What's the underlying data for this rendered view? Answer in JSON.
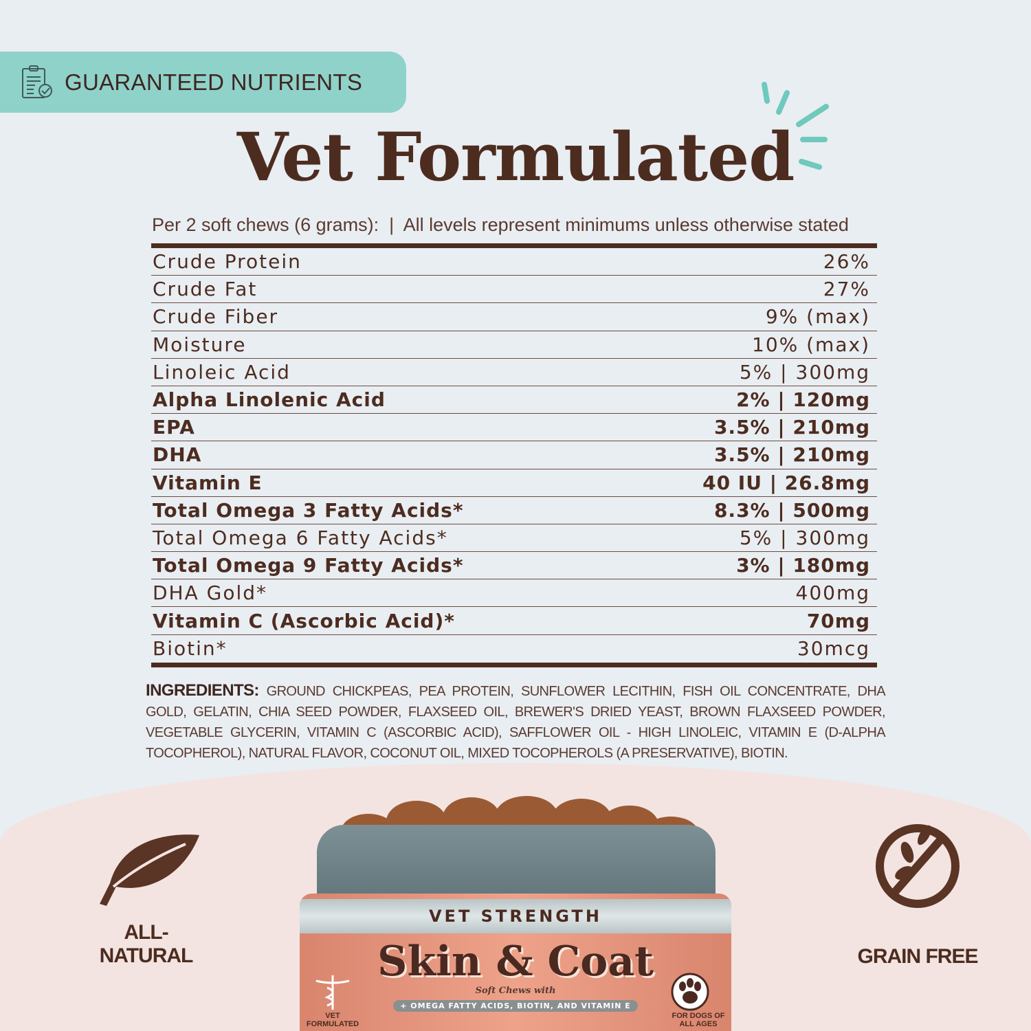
{
  "badge": {
    "icon": "clipboard-check-icon",
    "label": "GUARANTEED NUTRIENTS"
  },
  "title": "Vet Formulated",
  "serving_note": "Per 2 soft chews (6 grams):  |  All levels represent minimums unless otherwise stated",
  "nutrients": [
    {
      "name": "Crude Protein",
      "value": "26%",
      "bold": false
    },
    {
      "name": "Crude Fat",
      "value": "27%",
      "bold": false
    },
    {
      "name": "Crude Fiber",
      "value": "9% (max)",
      "bold": false
    },
    {
      "name": "Moisture",
      "value": "10% (max)",
      "bold": false
    },
    {
      "name": "Linoleic Acid",
      "value": "5% | 300mg",
      "bold": false
    },
    {
      "name": "Alpha Linolenic Acid",
      "value": "2% | 120mg",
      "bold": true
    },
    {
      "name": "EPA",
      "value": "3.5% | 210mg",
      "bold": true
    },
    {
      "name": "DHA",
      "value": "3.5% | 210mg",
      "bold": true
    },
    {
      "name": "Vitamin E",
      "value": "40 IU | 26.8mg",
      "bold": true
    },
    {
      "name": "Total Omega 3 Fatty Acids*",
      "value": "8.3% | 500mg",
      "bold": true
    },
    {
      "name": "Total Omega 6 Fatty Acids*",
      "value": "5% | 300mg",
      "bold": false
    },
    {
      "name": "Total Omega 9 Fatty Acids*",
      "value": "3% | 180mg",
      "bold": true
    },
    {
      "name": "DHA Gold*",
      "value": "400mg",
      "bold": false
    },
    {
      "name": "Vitamin C (Ascorbic Acid)*",
      "value": "70mg",
      "bold": true
    },
    {
      "name": "Biotin*",
      "value": "30mcg",
      "bold": false
    }
  ],
  "ingredients": {
    "label": "INGREDIENTS:",
    "text": "GROUND CHICKPEAS, PEA PROTEIN, SUNFLOWER LECITHIN, FISH OIL CONCENTRATE, DHA GOLD, GELATIN, CHIA SEED POWDER, FLAXSEED OIL, BREWER'S DRIED YEAST, BROWN FLAXSEED POWDER, VEGETABLE GLYCERIN, VITAMIN C (ASCORBIC ACID), SAFFLOWER OIL - HIGH LINOLEIC, VITAMIN E (D-ALPHA TOCOPHEROL), NATURAL FLAVOR, COCONUT OIL, MIXED TOCOPHEROLS (A PRESERVATIVE), BIOTIN."
  },
  "features": {
    "left": {
      "icon": "leaf-icon",
      "label": "ALL-\nNATURAL"
    },
    "right": {
      "icon": "no-grain-icon",
      "label": "GRAIN FREE"
    }
  },
  "jar": {
    "band": "VET STRENGTH",
    "name": "Skin & Coat",
    "sub": "Soft Chews with",
    "pill": "+ OMEGA FATTY ACIDS, BIOTIN, AND VITAMIN E",
    "left_badge": "VET FORMULATED",
    "right_badge": "FOR DOGS OF ALL AGES"
  },
  "colors": {
    "brown": "#4d2c20",
    "teal": "#8fd2ca",
    "background": "#e9eef2",
    "salmon": "#e8957c"
  }
}
